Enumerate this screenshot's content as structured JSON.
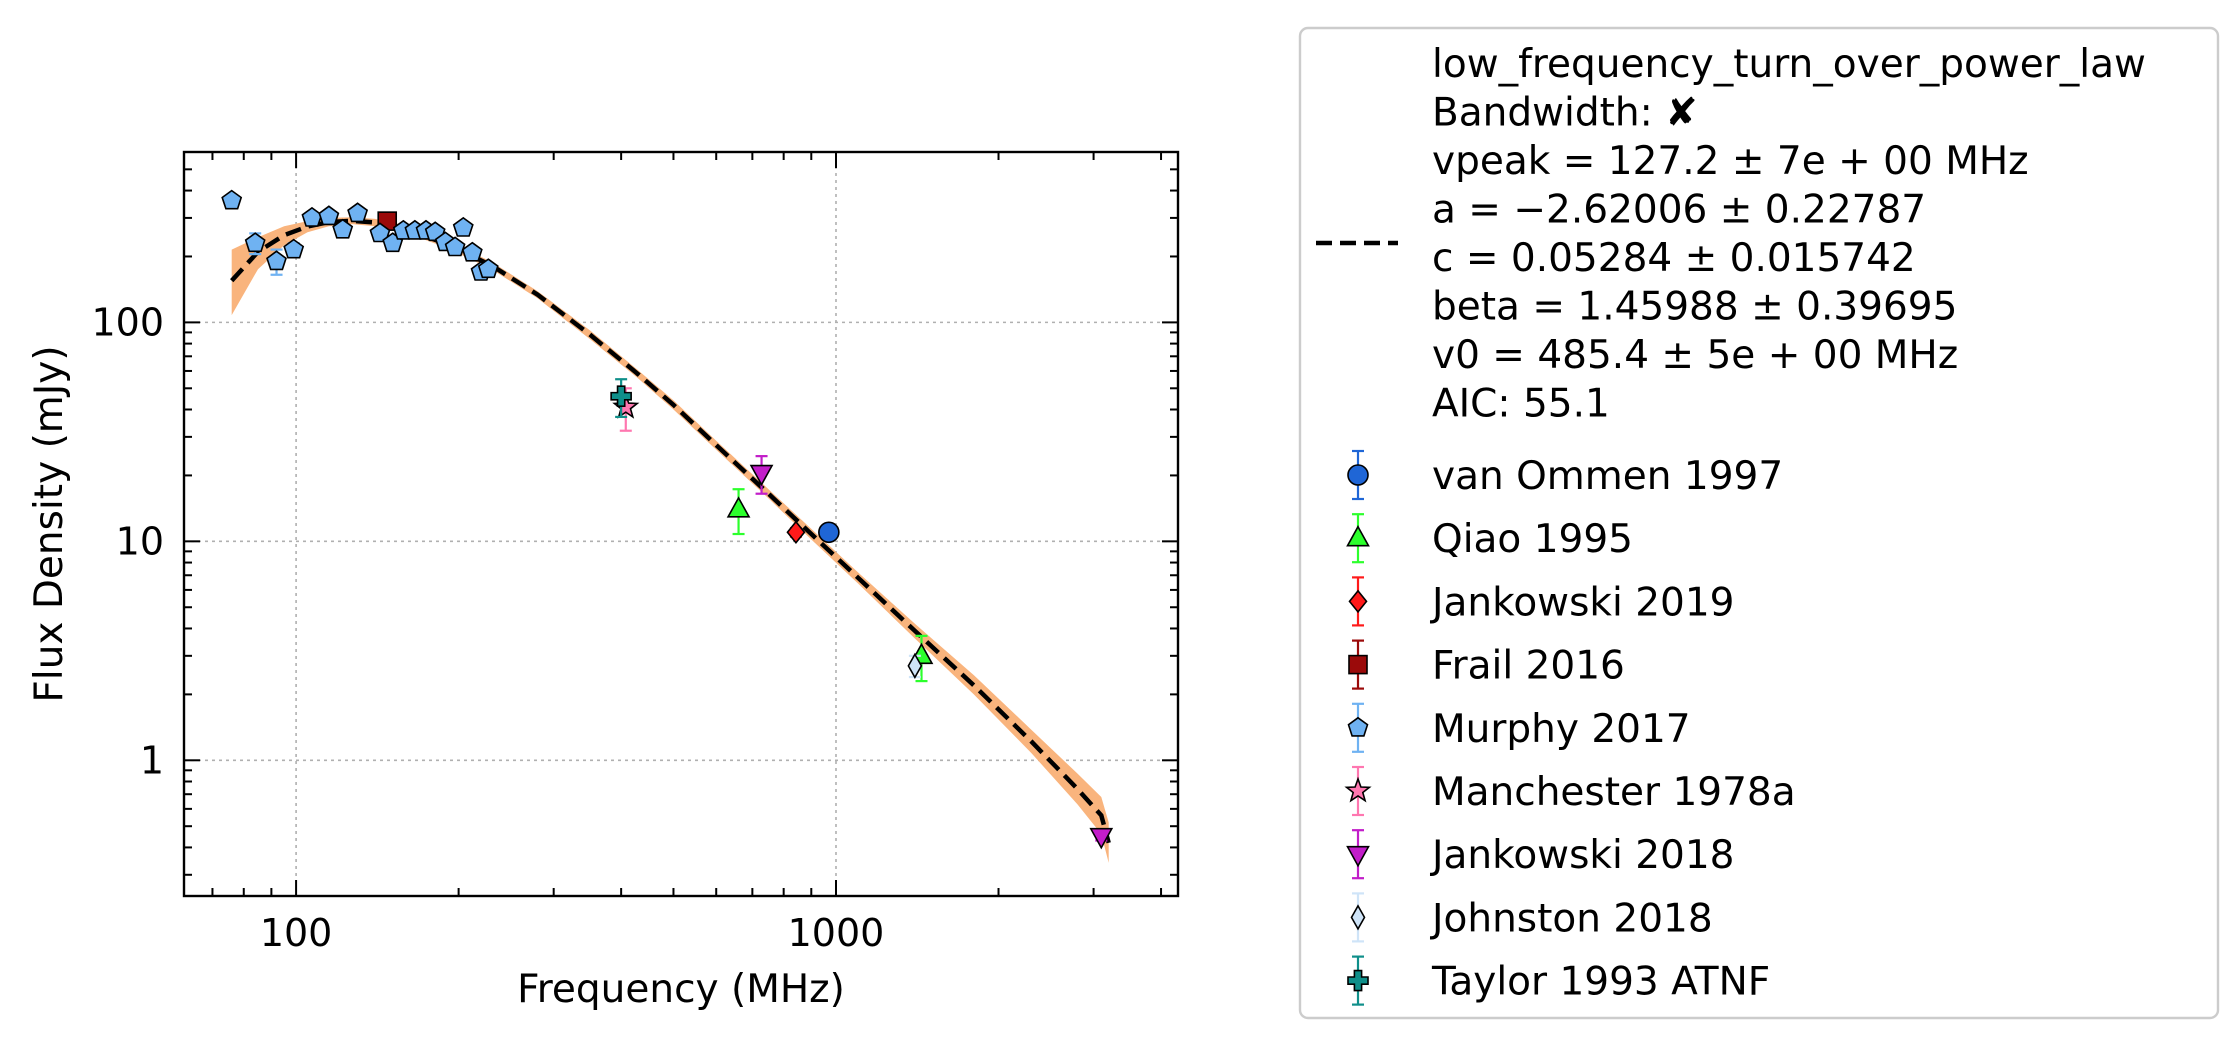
{
  "chart_data": {
    "type": "scatter",
    "title": "",
    "xlabel": "Frequency (MHz)",
    "ylabel": "Flux Density (mJy)",
    "xscale": "log",
    "yscale": "log",
    "xlim": [
      62,
      4300
    ],
    "ylim": [
      0.24,
      600
    ],
    "grid": true,
    "legend_position": "outside-right",
    "x_ticks": [
      {
        "value": 100,
        "label": "100"
      },
      {
        "value": 1000,
        "label": "1000"
      }
    ],
    "y_ticks": [
      {
        "value": 1,
        "label": "1"
      },
      {
        "value": 10,
        "label": "10"
      },
      {
        "value": 100,
        "label": "100"
      }
    ],
    "fit": {
      "model": "low_frequency_turn_over_power_law",
      "legend_lines": [
        "low_frequency_turn_over_power_law",
        "Bandwidth: ✘",
        "vpeak = 127.2 ± 7e + 00 MHz",
        "a = −2.62006 ± 0.22787",
        "c = 0.05284 ± 0.015742",
        "beta = 1.45988 ± 0.39695",
        "v0 = 485.4 ± 5e + 00 MHz",
        "AIC: 55.1"
      ],
      "line_color": "#000000",
      "band_color": "#f9b47d",
      "curve": [
        {
          "x": 76,
          "y": 155,
          "lo": 108,
          "hi": 215
        },
        {
          "x": 85,
          "y": 210,
          "lo": 175,
          "hi": 245
        },
        {
          "x": 95,
          "y": 250,
          "lo": 225,
          "hi": 275
        },
        {
          "x": 105,
          "y": 274,
          "lo": 258,
          "hi": 290
        },
        {
          "x": 115,
          "y": 287,
          "lo": 275,
          "hi": 300
        },
        {
          "x": 127,
          "y": 291,
          "lo": 281,
          "hi": 302
        },
        {
          "x": 140,
          "y": 286,
          "lo": 275,
          "hi": 297
        },
        {
          "x": 160,
          "y": 266,
          "lo": 256,
          "hi": 277
        },
        {
          "x": 190,
          "y": 228,
          "lo": 219,
          "hi": 237
        },
        {
          "x": 230,
          "y": 182,
          "lo": 175,
          "hi": 189
        },
        {
          "x": 280,
          "y": 134,
          "lo": 129,
          "hi": 139
        },
        {
          "x": 350,
          "y": 88,
          "lo": 84,
          "hi": 92
        },
        {
          "x": 430,
          "y": 58,
          "lo": 55.5,
          "hi": 60.5
        },
        {
          "x": 500,
          "y": 42,
          "lo": 40,
          "hi": 44
        },
        {
          "x": 600,
          "y": 27.5,
          "lo": 26.2,
          "hi": 28.8
        },
        {
          "x": 750,
          "y": 16.5,
          "lo": 15.7,
          "hi": 17.3
        },
        {
          "x": 900,
          "y": 10.8,
          "lo": 10.2,
          "hi": 11.4
        },
        {
          "x": 1100,
          "y": 6.8,
          "lo": 6.4,
          "hi": 7.2
        },
        {
          "x": 1400,
          "y": 3.9,
          "lo": 3.6,
          "hi": 4.2
        },
        {
          "x": 1800,
          "y": 2.2,
          "lo": 2.0,
          "hi": 2.45
        },
        {
          "x": 2300,
          "y": 1.22,
          "lo": 1.08,
          "hi": 1.38
        },
        {
          "x": 2800,
          "y": 0.74,
          "lo": 0.63,
          "hi": 0.87
        },
        {
          "x": 3100,
          "y": 0.56,
          "lo": 0.46,
          "hi": 0.68
        },
        {
          "x": 3200,
          "y": 0.42,
          "lo": 0.34,
          "hi": 0.52
        }
      ]
    },
    "series": [
      {
        "name": "van Ommen 1997",
        "marker": "circle",
        "color": "#1f66d6",
        "points": [
          {
            "x": 970,
            "y": 11.0,
            "lo": 10.6,
            "hi": 11.4
          }
        ]
      },
      {
        "name": "Qiao 1995",
        "marker": "triangle-up",
        "color": "#2cff2c",
        "points": [
          {
            "x": 660,
            "y": 14.0,
            "lo": 10.8,
            "hi": 17.3
          },
          {
            "x": 1440,
            "y": 3.0,
            "lo": 2.3,
            "hi": 3.7
          }
        ]
      },
      {
        "name": "Jankowski 2019",
        "marker": "diamond",
        "color": "#ff1a1a",
        "points": [
          {
            "x": 843,
            "y": 11.0,
            "lo": 10.5,
            "hi": 11.5
          }
        ]
      },
      {
        "name": "Frail 2016",
        "marker": "square",
        "color": "#9b0a0a",
        "points": [
          {
            "x": 147.5,
            "y": 290,
            "lo": 270,
            "hi": 310
          }
        ]
      },
      {
        "name": "Murphy 2017",
        "marker": "pentagon",
        "color": "#6fb2f2",
        "points": [
          {
            "x": 76,
            "y": 360,
            "lo": 340,
            "hi": 380
          },
          {
            "x": 84,
            "y": 230,
            "lo": 205,
            "hi": 255
          },
          {
            "x": 92,
            "y": 190,
            "lo": 165,
            "hi": 215
          },
          {
            "x": 99,
            "y": 215,
            "lo": 200,
            "hi": 230
          },
          {
            "x": 107,
            "y": 300,
            "lo": 290,
            "hi": 310
          },
          {
            "x": 115,
            "y": 305,
            "lo": 295,
            "hi": 315
          },
          {
            "x": 122,
            "y": 265,
            "lo": 255,
            "hi": 275
          },
          {
            "x": 130,
            "y": 315,
            "lo": 305,
            "hi": 325
          },
          {
            "x": 143,
            "y": 255,
            "lo": 245,
            "hi": 265
          },
          {
            "x": 151,
            "y": 230,
            "lo": 222,
            "hi": 238
          },
          {
            "x": 158,
            "y": 262,
            "lo": 254,
            "hi": 270
          },
          {
            "x": 166,
            "y": 262,
            "lo": 254,
            "hi": 270
          },
          {
            "x": 174,
            "y": 262,
            "lo": 254,
            "hi": 270
          },
          {
            "x": 181,
            "y": 258,
            "lo": 250,
            "hi": 266
          },
          {
            "x": 189,
            "y": 232,
            "lo": 224,
            "hi": 240
          },
          {
            "x": 197,
            "y": 220,
            "lo": 213,
            "hi": 227
          },
          {
            "x": 204,
            "y": 270,
            "lo": 262,
            "hi": 278
          },
          {
            "x": 212,
            "y": 208,
            "lo": 201,
            "hi": 215
          },
          {
            "x": 220,
            "y": 170,
            "lo": 164,
            "hi": 176
          },
          {
            "x": 227,
            "y": 175,
            "lo": 169,
            "hi": 181
          }
        ]
      },
      {
        "name": "Manchester 1978a",
        "marker": "star",
        "color": "#ff77b0",
        "points": [
          {
            "x": 408,
            "y": 41,
            "lo": 32,
            "hi": 50
          }
        ]
      },
      {
        "name": "Jankowski 2018",
        "marker": "triangle-down",
        "color": "#c21dc9",
        "points": [
          {
            "x": 728,
            "y": 20.5,
            "lo": 16.5,
            "hi": 24.5
          },
          {
            "x": 3100,
            "y": 0.45,
            "lo": 0.43,
            "hi": 0.47
          }
        ]
      },
      {
        "name": "Johnston 2018",
        "marker": "thin-diamond",
        "color": "#cfe4f8",
        "points": [
          {
            "x": 1400,
            "y": 2.7,
            "lo": 2.4,
            "hi": 3.0
          }
        ]
      },
      {
        "name": "Taylor 1993 ATNF",
        "marker": "plus",
        "color": "#0f8f8a",
        "points": [
          {
            "x": 400,
            "y": 46,
            "lo": 37,
            "hi": 55
          }
        ]
      }
    ]
  }
}
